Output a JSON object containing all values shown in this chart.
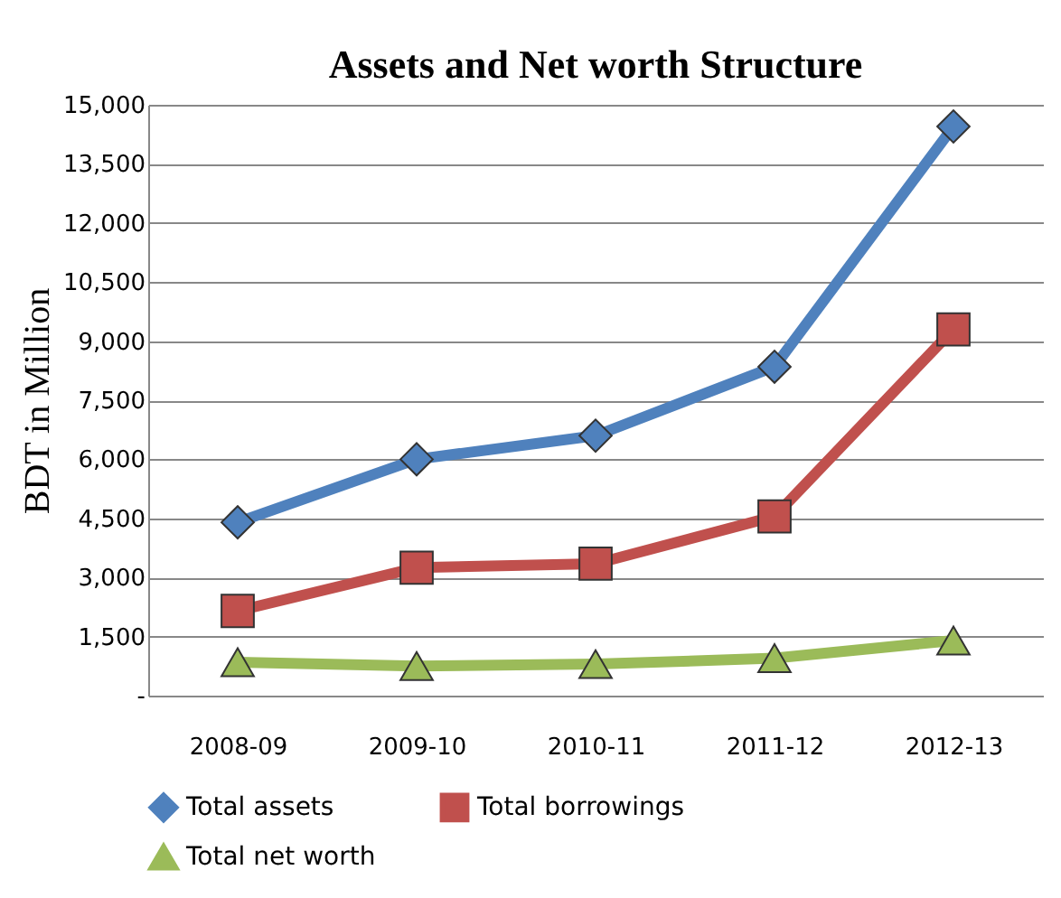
{
  "chart_data": {
    "type": "line",
    "title": "Assets and Net worth Structure",
    "ylabel": "BDT in Million",
    "categories": [
      "2008-09",
      "2009-10",
      "2010-11",
      "2011-12",
      "2012-13"
    ],
    "series": [
      {
        "name": "Total assets",
        "color": "#4f81bd",
        "marker": "diamond",
        "values": [
          4400,
          6000,
          6600,
          8350,
          14450
        ]
      },
      {
        "name": "Total borrowings",
        "color": "#c0504d",
        "marker": "square",
        "values": [
          2150,
          3250,
          3350,
          4550,
          9300
        ]
      },
      {
        "name": "Total net worth",
        "color": "#9bbb59",
        "marker": "triangle",
        "values": [
          850,
          750,
          800,
          950,
          1400
        ]
      }
    ],
    "ylim": [
      0,
      15000
    ],
    "yticks": [
      {
        "value": 0,
        "label": "-"
      },
      {
        "value": 1500,
        "label": "1,500"
      },
      {
        "value": 3000,
        "label": "3,000"
      },
      {
        "value": 4500,
        "label": "4,500"
      },
      {
        "value": 6000,
        "label": "6,000"
      },
      {
        "value": 7500,
        "label": "7,500"
      },
      {
        "value": 9000,
        "label": "9,000"
      },
      {
        "value": 10500,
        "label": "10,500"
      },
      {
        "value": 12000,
        "label": "12,000"
      },
      {
        "value": 13500,
        "label": "13,500"
      },
      {
        "value": 15000,
        "label": "15,000"
      }
    ],
    "grid": "y",
    "legend": "bottom",
    "line_style": "solid"
  }
}
